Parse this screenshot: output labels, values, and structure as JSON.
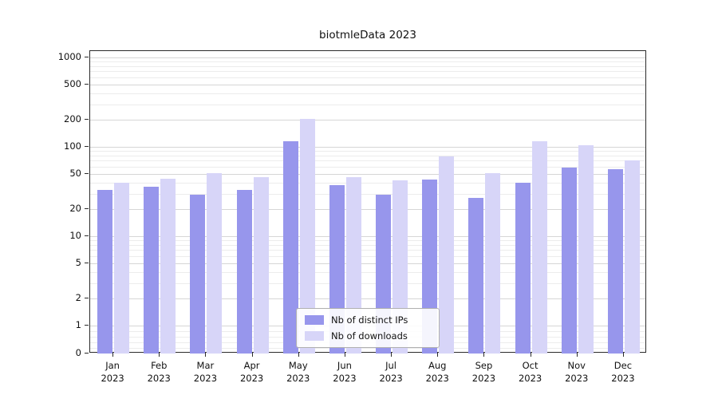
{
  "chart_data": {
    "type": "bar",
    "title": "biotmleData 2023",
    "yscale": "symlog",
    "ylim": [
      0,
      1200
    ],
    "grid": true,
    "legend_position": "lower center",
    "yticks": [
      0,
      1,
      2,
      5,
      10,
      20,
      50,
      100,
      200,
      500,
      1000
    ],
    "minor_yticks": [
      0.2,
      0.4,
      0.6,
      0.8,
      3,
      4,
      6,
      7,
      8,
      9,
      30,
      40,
      60,
      70,
      80,
      90,
      300,
      400,
      600,
      700,
      800,
      900
    ],
    "categories": [
      "Jan\n2023",
      "Feb\n2023",
      "Mar\n2023",
      "Apr\n2023",
      "May\n2023",
      "Jun\n2023",
      "Jul\n2023",
      "Aug\n2023",
      "Sep\n2023",
      "Oct\n2023",
      "Nov\n2023",
      "Dec\n2023"
    ],
    "series": [
      {
        "name": "Nb of distinct IPs",
        "color": "#9796ec",
        "values": [
          33,
          36,
          29,
          33,
          115,
          37,
          29,
          43,
          27,
          40,
          58,
          56
        ]
      },
      {
        "name": "Nb of downloads",
        "color": "#d7d5f8",
        "values": [
          40,
          44,
          51,
          46,
          205,
          46,
          42,
          78,
          51,
          115,
          105,
          70
        ]
      }
    ]
  },
  "colors": {
    "major_grid": "#d6d6d6",
    "minor_grid": "#ececec",
    "axis": "#2b2b2b"
  }
}
